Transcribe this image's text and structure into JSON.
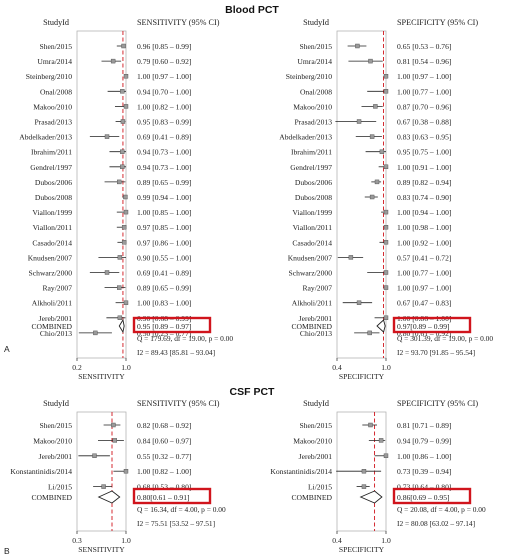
{
  "figure": {
    "blood": {
      "title": "Blood PCT",
      "panel_letter": "A",
      "studies": [
        "Shen/2015",
        "Umra/2014",
        "Steinberg/2010",
        "Onal/2008",
        "Makoo/2010",
        "Prasad/2013",
        "Abdelkader/2013",
        "Ibrahim/2011",
        "Gendrel/1997",
        "Dubos/2006",
        "Dubos/2008",
        "Viallon/1999",
        "Viallon/2011",
        "Casado/2014",
        "Knudsen/2007",
        "Schwarz/2000",
        "Ray/2007",
        "Alkholi/2011",
        "Jereb/2001",
        "Chio/2013"
      ]
    },
    "csf": {
      "title": "CSF PCT",
      "panel_letter": "B",
      "studies": [
        "Shen/2015",
        "Makoo/2010",
        "Jereb/2001",
        "Konstantinidis/2014",
        "Li/2015"
      ]
    }
  },
  "chart_data": [
    {
      "type": "forest",
      "section": "Blood PCT",
      "column_header": "StudyId",
      "ci_header": "SENSITIVITY (95% CI)",
      "xlabel": "SENSITIVITY",
      "xticks": [
        "0.2",
        "1.0"
      ],
      "xlim": [
        0.2,
        1.0
      ],
      "reference_line": 0.95,
      "studies": [
        {
          "study": "Shen/2015",
          "est": 0.96,
          "lo": 0.85,
          "hi": 0.99,
          "ci_text": "0.96 [0.85 – 0.99]"
        },
        {
          "study": "Umra/2014",
          "est": 0.79,
          "lo": 0.6,
          "hi": 0.92,
          "ci_text": "0.79 [0.60 – 0.92]"
        },
        {
          "study": "Steinberg/2010",
          "est": 1.0,
          "lo": 0.97,
          "hi": 1.0,
          "ci_text": "1.00 [0.97 – 1.00]"
        },
        {
          "study": "Onal/2008",
          "est": 0.94,
          "lo": 0.7,
          "hi": 1.0,
          "ci_text": "0.94 [0.70 – 1.00]"
        },
        {
          "study": "Makoo/2010",
          "est": 1.0,
          "lo": 0.82,
          "hi": 1.0,
          "ci_text": "1.00 [0.82 – 1.00]"
        },
        {
          "study": "Prasad/2013",
          "est": 0.95,
          "lo": 0.83,
          "hi": 0.99,
          "ci_text": "0.95 [0.83 – 0.99]"
        },
        {
          "study": "Abdelkader/2013",
          "est": 0.69,
          "lo": 0.41,
          "hi": 0.89,
          "ci_text": "0.69 [0.41 – 0.89]"
        },
        {
          "study": "Ibrahim/2011",
          "est": 0.94,
          "lo": 0.73,
          "hi": 1.0,
          "ci_text": "0.94 [0.73 – 1.00]"
        },
        {
          "study": "Gendrel/1997",
          "est": 0.94,
          "lo": 0.73,
          "hi": 1.0,
          "ci_text": "0.94 [0.73 – 1.00]"
        },
        {
          "study": "Dubos/2006",
          "est": 0.89,
          "lo": 0.65,
          "hi": 0.99,
          "ci_text": "0.89 [0.65 – 0.99]"
        },
        {
          "study": "Dubos/2008",
          "est": 0.99,
          "lo": 0.94,
          "hi": 1.0,
          "ci_text": "0.99 [0.94 – 1.00]"
        },
        {
          "study": "Viallon/1999",
          "est": 1.0,
          "lo": 0.85,
          "hi": 1.0,
          "ci_text": "1.00 [0.85 – 1.00]"
        },
        {
          "study": "Viallon/2011",
          "est": 0.97,
          "lo": 0.85,
          "hi": 1.0,
          "ci_text": "0.97 [0.85 – 1.00]"
        },
        {
          "study": "Casado/2014",
          "est": 0.97,
          "lo": 0.86,
          "hi": 1.0,
          "ci_text": "0.97 [0.86 – 1.00]"
        },
        {
          "study": "Knudsen/2007",
          "est": 0.9,
          "lo": 0.55,
          "hi": 1.0,
          "ci_text": "0.90 [0.55 – 1.00]"
        },
        {
          "study": "Schwarz/2000",
          "est": 0.69,
          "lo": 0.41,
          "hi": 0.89,
          "ci_text": "0.69 [0.41 – 0.89]"
        },
        {
          "study": "Ray/2007",
          "est": 0.89,
          "lo": 0.65,
          "hi": 0.99,
          "ci_text": "0.89 [0.65 – 0.99]"
        },
        {
          "study": "Alkholi/2011",
          "est": 1.0,
          "lo": 0.83,
          "hi": 1.0,
          "ci_text": "1.00 [0.83 – 1.00]"
        },
        {
          "study": "Jereb/2001",
          "est": 0.9,
          "lo": 0.68,
          "hi": 0.99,
          "ci_text": "0.90 [0.68 – 0.99]"
        },
        {
          "study": "Chio/2013",
          "est": 0.5,
          "lo": 0.23,
          "hi": 0.77,
          "ci_text": "0.50 [0.23 – 0.77]"
        }
      ],
      "combined": {
        "label": "COMBINED",
        "est": 0.95,
        "lo": 0.89,
        "hi": 0.97,
        "ci_text": "0.95 [0.89 – 0.97]"
      },
      "heterogeneity": [
        "Q = 179.69, df = 19.00, p = 0.00",
        "I2 = 89.43 [85.81 – 93.04]"
      ]
    },
    {
      "type": "forest",
      "section": "Blood PCT",
      "column_header": "StudyId",
      "ci_header": "SPECIFICITY (95% CI)",
      "xlabel": "SPECIFICITY",
      "xticks": [
        "0.4",
        "1.0"
      ],
      "xlim": [
        0.4,
        1.0
      ],
      "reference_line": 0.97,
      "studies": [
        {
          "study": "Shen/2015",
          "est": 0.65,
          "lo": 0.53,
          "hi": 0.76,
          "ci_text": "0.65 [0.53 – 0.76]"
        },
        {
          "study": "Umra/2014",
          "est": 0.81,
          "lo": 0.54,
          "hi": 0.96,
          "ci_text": "0.81 [0.54 – 0.96]"
        },
        {
          "study": "Steinberg/2010",
          "est": 1.0,
          "lo": 0.97,
          "hi": 1.0,
          "ci_text": "1.00 [0.97 – 1.00]"
        },
        {
          "study": "Onal/2008",
          "est": 1.0,
          "lo": 0.77,
          "hi": 1.0,
          "ci_text": "1.00 [0.77 – 1.00]"
        },
        {
          "study": "Makoo/2010",
          "est": 0.87,
          "lo": 0.7,
          "hi": 0.96,
          "ci_text": "0.87 [0.70 – 0.96]"
        },
        {
          "study": "Prasad/2013",
          "est": 0.67,
          "lo": 0.38,
          "hi": 0.88,
          "ci_text": "0.67 [0.38 – 0.88]"
        },
        {
          "study": "Abdelkader/2013",
          "est": 0.83,
          "lo": 0.63,
          "hi": 0.95,
          "ci_text": "0.83 [0.63 – 0.95]"
        },
        {
          "study": "Ibrahim/2011",
          "est": 0.95,
          "lo": 0.75,
          "hi": 1.0,
          "ci_text": "0.95 [0.75 – 1.00]"
        },
        {
          "study": "Gendrel/1997",
          "est": 1.0,
          "lo": 0.91,
          "hi": 1.0,
          "ci_text": "1.00 [0.91 – 1.00]"
        },
        {
          "study": "Dubos/2006",
          "est": 0.89,
          "lo": 0.82,
          "hi": 0.94,
          "ci_text": "0.89 [0.82 – 0.94]"
        },
        {
          "study": "Dubos/2008",
          "est": 0.83,
          "lo": 0.74,
          "hi": 0.9,
          "ci_text": "0.83 [0.74 – 0.90]"
        },
        {
          "study": "Viallon/1999",
          "est": 1.0,
          "lo": 0.94,
          "hi": 1.0,
          "ci_text": "1.00 [0.94 – 1.00]"
        },
        {
          "study": "Viallon/2011",
          "est": 1.0,
          "lo": 0.98,
          "hi": 1.0,
          "ci_text": "1.00 [0.98 – 1.00]"
        },
        {
          "study": "Casado/2014",
          "est": 1.0,
          "lo": 0.92,
          "hi": 1.0,
          "ci_text": "1.00 [0.92 – 1.00]"
        },
        {
          "study": "Knudsen/2007",
          "est": 0.57,
          "lo": 0.41,
          "hi": 0.72,
          "ci_text": "0.57 [0.41 – 0.72]"
        },
        {
          "study": "Schwarz/2000",
          "est": 1.0,
          "lo": 0.77,
          "hi": 1.0,
          "ci_text": "1.00 [0.77 – 1.00]"
        },
        {
          "study": "Ray/2007",
          "est": 1.0,
          "lo": 0.97,
          "hi": 1.0,
          "ci_text": "1.00 [0.97 – 1.00]"
        },
        {
          "study": "Alkholi/2011",
          "est": 0.67,
          "lo": 0.47,
          "hi": 0.83,
          "ci_text": "0.67 [0.47 – 0.83]"
        },
        {
          "study": "Jereb/2001",
          "est": 1.0,
          "lo": 0.86,
          "hi": 1.0,
          "ci_text": "1.00 [0.86 – 1.00]"
        },
        {
          "study": "Chio/2013",
          "est": 0.8,
          "lo": 0.61,
          "hi": 0.92,
          "ci_text": "0.80 [0.61 – 0.92]"
        }
      ],
      "combined": {
        "label": "COMBINED",
        "est": 0.97,
        "lo": 0.89,
        "hi": 0.99,
        "ci_text": "0.97[0.89 – 0.99]"
      },
      "heterogeneity": [
        "Q = 301.39, df = 19.00, p = 0.00",
        "I2 = 93.70 [91.85 – 95.54]"
      ]
    },
    {
      "type": "forest",
      "section": "CSF PCT",
      "column_header": "StudyId",
      "ci_header": "SENSITIVITY (95% CI)",
      "xlabel": "SENSITIVITY",
      "xticks": [
        "0.3",
        "1.0"
      ],
      "xlim": [
        0.3,
        1.0
      ],
      "reference_line": 0.8,
      "studies": [
        {
          "study": "Shen/2015",
          "est": 0.82,
          "lo": 0.68,
          "hi": 0.92,
          "ci_text": "0.82 [0.68 – 0.92]"
        },
        {
          "study": "Makoo/2010",
          "est": 0.84,
          "lo": 0.6,
          "hi": 0.97,
          "ci_text": "0.84 [0.60 – 0.97]"
        },
        {
          "study": "Jereb/2001",
          "est": 0.55,
          "lo": 0.32,
          "hi": 0.77,
          "ci_text": "0.55 [0.32 – 0.77]"
        },
        {
          "study": "Konstantinidis/2014",
          "est": 1.0,
          "lo": 0.82,
          "hi": 1.0,
          "ci_text": "1.00 [0.82 – 1.00]"
        },
        {
          "study": "Li/2015",
          "est": 0.68,
          "lo": 0.53,
          "hi": 0.8,
          "ci_text": "0.68 [0.53 – 0.80]"
        }
      ],
      "combined": {
        "label": "COMBINED",
        "est": 0.8,
        "lo": 0.61,
        "hi": 0.91,
        "ci_text": "0.80[0.61 – 0.91]"
      },
      "heterogeneity": [
        "Q = 16.34, df = 4.00, p = 0.00",
        "I2 = 75.51 [53.52 – 97.51]"
      ]
    },
    {
      "type": "forest",
      "section": "CSF PCT",
      "column_header": "StudyId",
      "ci_header": "SPECIFICITY (95% CI)",
      "xlabel": "SPECIFICITY",
      "xticks": [
        "0.4",
        "1.0"
      ],
      "xlim": [
        0.4,
        1.0
      ],
      "reference_line": 0.86,
      "studies": [
        {
          "study": "Shen/2015",
          "est": 0.81,
          "lo": 0.71,
          "hi": 0.89,
          "ci_text": "0.81 [0.71 – 0.89]"
        },
        {
          "study": "Makoo/2010",
          "est": 0.94,
          "lo": 0.79,
          "hi": 0.99,
          "ci_text": "0.94 [0.79 – 0.99]"
        },
        {
          "study": "Jereb/2001",
          "est": 1.0,
          "lo": 0.86,
          "hi": 1.0,
          "ci_text": "1.00 [0.86 – 1.00]"
        },
        {
          "study": "Konstantinidis/2014",
          "est": 0.73,
          "lo": 0.39,
          "hi": 0.94,
          "ci_text": "0.73 [0.39 – 0.94]"
        },
        {
          "study": "Li/2015",
          "est": 0.73,
          "lo": 0.64,
          "hi": 0.8,
          "ci_text": "0.73 [0.64 – 0.80]"
        }
      ],
      "combined": {
        "label": "COMBINED",
        "est": 0.86,
        "lo": 0.69,
        "hi": 0.95,
        "ci_text": "0.86[0.69 – 0.95]"
      },
      "heterogeneity": [
        "Q = 20.08, df = 4.00, p = 0.00",
        "I2 = 80.08 [63.02 – 97.14]"
      ]
    }
  ],
  "colors": {
    "highlight_box": "#d0141c",
    "reference_line": "#d0141c",
    "ink": "#222222"
  }
}
